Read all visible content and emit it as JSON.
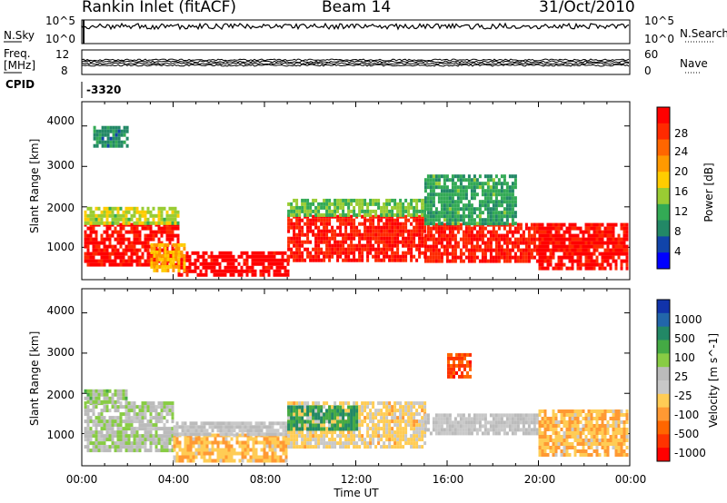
{
  "header": {
    "station": "Rankin Inlet (fitACF)",
    "beam": "Beam 14",
    "date": "31/Oct/2010"
  },
  "top_panels": {
    "nsky_label": "N.Sky",
    "nsearch_label": "N.Search",
    "nsky_ticks": [
      "10^5",
      "10^0"
    ],
    "nsearch_ticks": [
      "10^5",
      "10^0"
    ],
    "freq_label": "Freq.",
    "freq_unit": "[MHz]",
    "freq_ticks": [
      "12",
      "8"
    ],
    "nave_label": "Nave",
    "nave_ticks": [
      "60",
      "0"
    ],
    "cpid_label": "CPID",
    "cpid_value": "-3320"
  },
  "axes": {
    "xlabel": "Time UT",
    "x_ticks": [
      "00:00",
      "04:00",
      "08:00",
      "12:00",
      "16:00",
      "20:00",
      "00:00"
    ],
    "ylabel": "Slant Range [km]",
    "y_ticks": [
      "4000",
      "3000",
      "2000",
      "1000"
    ]
  },
  "power_colorbar": {
    "label": "Power [dB]",
    "ticks": [
      "28",
      "24",
      "20",
      "16",
      "12",
      "8",
      "4"
    ],
    "colors": [
      "#ff0000",
      "#ff2a00",
      "#ff6600",
      "#ff9900",
      "#ffcc00",
      "#99cc33",
      "#33aa55",
      "#228866",
      "#1144aa",
      "#0000ff"
    ]
  },
  "velocity_colorbar": {
    "label": "Velocity [m s^-1]",
    "ticks": [
      "1000",
      "500",
      "100",
      "25",
      "-25",
      "-100",
      "-500",
      "-1000"
    ],
    "colors": [
      "#1133aa",
      "#2266aa",
      "#228866",
      "#44aa44",
      "#88cc44",
      "#bbbbbb",
      "#c8c8c8",
      "#ffcc55",
      "#ff9933",
      "#ff6600",
      "#ff3300",
      "#ff0000"
    ]
  },
  "chart_data": [
    {
      "type": "heatmap",
      "name_shown": "Power [dB]",
      "x": "Time UT (hours)",
      "xlim": [
        0,
        24
      ],
      "ylim": [
        200,
        4600
      ],
      "ylabel": "Slant Range [km]",
      "clim": [
        0,
        30
      ],
      "bands": [
        {
          "t0": 0.1,
          "t1": 4.2,
          "r0": 600,
          "r1": 1600,
          "value": 28
        },
        {
          "t0": 0.1,
          "t1": 4.2,
          "r0": 1600,
          "r1": 2000,
          "value": 14
        },
        {
          "t0": 4.2,
          "t1": 9.0,
          "r0": 300,
          "r1": 900,
          "value": 29
        },
        {
          "t0": 3.0,
          "t1": 4.5,
          "r0": 400,
          "r1": 1100,
          "value": 18
        },
        {
          "t0": 9.0,
          "t1": 15.0,
          "r0": 700,
          "r1": 1800,
          "value": 27
        },
        {
          "t0": 9.0,
          "t1": 15.0,
          "r0": 1800,
          "r1": 2200,
          "value": 12
        },
        {
          "t0": 15.0,
          "t1": 20.0,
          "r0": 700,
          "r1": 1600,
          "value": 27
        },
        {
          "t0": 15.0,
          "t1": 19.0,
          "r0": 1600,
          "r1": 2800,
          "value": 10
        },
        {
          "t0": 20.0,
          "t1": 23.9,
          "r0": 500,
          "r1": 1600,
          "value": 28
        },
        {
          "t0": 0.5,
          "t1": 2.0,
          "r0": 3500,
          "r1": 4000,
          "value": 8
        }
      ]
    },
    {
      "type": "heatmap",
      "name_shown": "Velocity [m s^-1]",
      "x": "Time UT (hours)",
      "xlim": [
        0,
        24
      ],
      "ylim": [
        200,
        4600
      ],
      "ylabel": "Slant Range [km]",
      "clim": [
        -1000,
        1000
      ],
      "bands": [
        {
          "t0": 0.1,
          "t1": 4.0,
          "r0": 600,
          "r1": 1800,
          "value": 100
        },
        {
          "t0": 0.1,
          "t1": 2.0,
          "r0": 1800,
          "r1": 2100,
          "value": 200
        },
        {
          "t0": 4.0,
          "t1": 9.0,
          "r0": 300,
          "r1": 1000,
          "value": -300
        },
        {
          "t0": 4.0,
          "t1": 9.0,
          "r0": 1000,
          "r1": 1300,
          "value": 0
        },
        {
          "t0": 9.0,
          "t1": 15.0,
          "r0": 700,
          "r1": 1800,
          "value": -200
        },
        {
          "t0": 9.0,
          "t1": 12.0,
          "r0": 1100,
          "r1": 1700,
          "value": 500
        },
        {
          "t0": 15.0,
          "t1": 20.0,
          "r0": 1000,
          "r1": 1500,
          "value": 0
        },
        {
          "t0": 16.0,
          "t1": 17.0,
          "r0": 2400,
          "r1": 3000,
          "value": -700
        },
        {
          "t0": 20.0,
          "t1": 23.9,
          "r0": 500,
          "r1": 1600,
          "value": -300
        }
      ]
    }
  ]
}
